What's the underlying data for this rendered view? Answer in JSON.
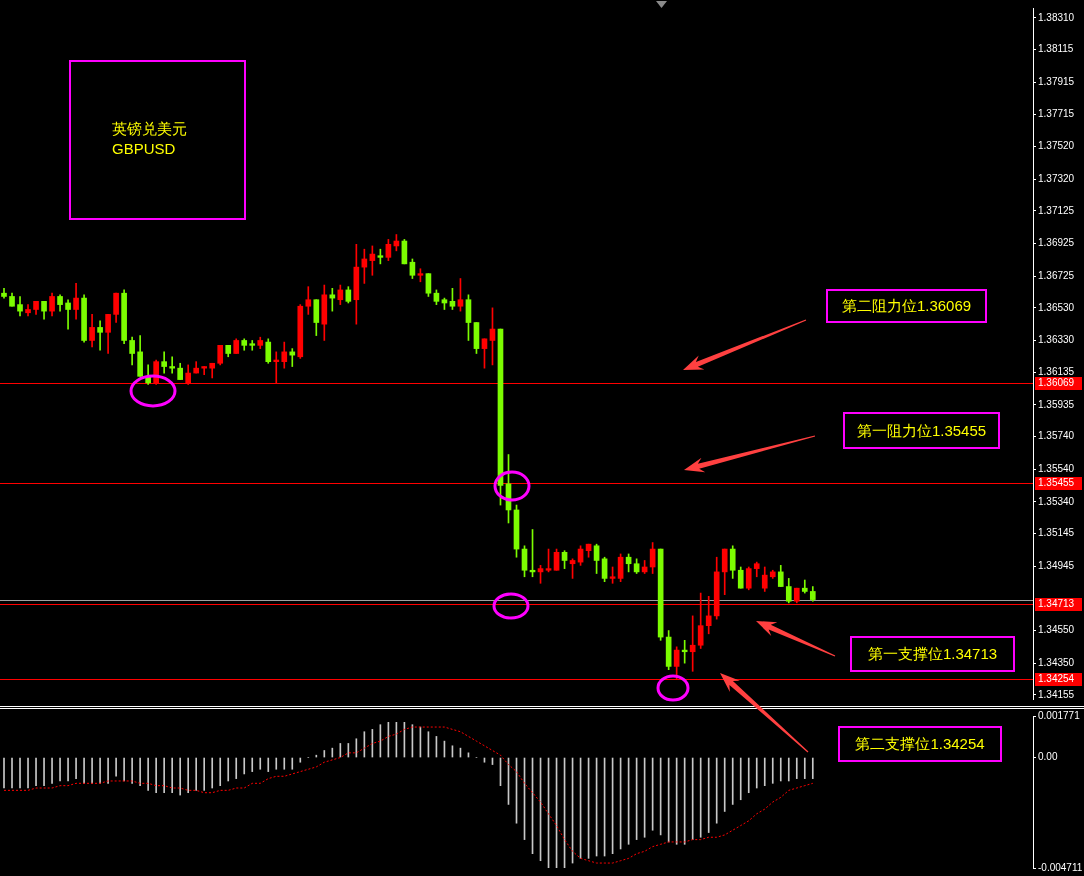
{
  "chart_data": [
    {
      "type": "candlestick",
      "title": "英镑兑美元",
      "subtitle": "GBPUSD",
      "categories": [
        null,
        null,
        null,
        null,
        null,
        null,
        null,
        null,
        null,
        null,
        null,
        null,
        null,
        null,
        null,
        null,
        null,
        null,
        null,
        null,
        null,
        null,
        null,
        null,
        null,
        null,
        null,
        null,
        null,
        null,
        null,
        null,
        null,
        null,
        null,
        null,
        null,
        null,
        null,
        null,
        null,
        null,
        null,
        null,
        null,
        null,
        null,
        null,
        null,
        null,
        null,
        null,
        null,
        null,
        null,
        null,
        null,
        null,
        null,
        null,
        null,
        null,
        null,
        null,
        null,
        null,
        null,
        null,
        null,
        null,
        null,
        null,
        null,
        null,
        null,
        null,
        null,
        null,
        null,
        null,
        null,
        null,
        null,
        null,
        null,
        null,
        null,
        null,
        null,
        null,
        null,
        null,
        null,
        null,
        null,
        null,
        null,
        null,
        null,
        null,
        null,
        null,
        null,
        null,
        null,
        null,
        null,
        null,
        null,
        null,
        null,
        null,
        null,
        null,
        null,
        null,
        null,
        null,
        null,
        null,
        null,
        null,
        null,
        null,
        null,
        null,
        null,
        null,
        null
      ],
      "ohlc": [
        [
          1.3662,
          1.3665,
          1.3659,
          1.366
        ],
        [
          1.366,
          1.3662,
          1.3654,
          1.3654
        ],
        [
          1.3655,
          1.366,
          1.3648,
          1.3651
        ],
        [
          1.365,
          1.3655,
          1.3648,
          1.3652
        ],
        [
          1.3652,
          1.3657,
          1.3649,
          1.3657
        ],
        [
          1.3657,
          1.3657,
          1.3646,
          1.3651
        ],
        [
          1.3651,
          1.3662,
          1.3648,
          1.366
        ],
        [
          1.366,
          1.3661,
          1.3651,
          1.3655
        ],
        [
          1.3656,
          1.3658,
          1.364,
          1.3652
        ],
        [
          1.3652,
          1.3668,
          1.3646,
          1.3659
        ],
        [
          1.3659,
          1.3661,
          1.3632,
          1.3633
        ],
        [
          1.3633,
          1.3649,
          1.3629,
          1.3641
        ],
        [
          1.3641,
          1.3645,
          1.3627,
          1.3638
        ],
        [
          1.3638,
          1.3649,
          1.3625,
          1.3649
        ],
        [
          1.3649,
          1.3662,
          1.3644,
          1.3662
        ],
        [
          1.3662,
          1.3664,
          1.3631,
          1.3633
        ],
        [
          1.3633,
          1.3635,
          1.3618,
          1.3625
        ],
        [
          1.3626,
          1.3636,
          1.3611,
          1.3611
        ],
        [
          1.3611,
          1.3618,
          1.3606,
          1.3607
        ],
        [
          1.3607,
          1.3621,
          1.3606,
          1.362
        ],
        [
          1.362,
          1.3626,
          1.3613,
          1.3617
        ],
        [
          1.3617,
          1.3623,
          1.3613,
          1.3616
        ],
        [
          1.3616,
          1.3619,
          1.3609,
          1.3609
        ],
        [
          1.3607,
          1.3618,
          1.3606,
          1.3613
        ],
        [
          1.3613,
          1.362,
          1.3613,
          1.3616
        ],
        [
          1.3616,
          1.3617,
          1.3612,
          1.3617
        ],
        [
          1.3616,
          1.3619,
          1.361,
          1.3619
        ],
        [
          1.3619,
          1.363,
          1.3618,
          1.363
        ],
        [
          1.363,
          1.363,
          1.3623,
          1.3625
        ],
        [
          1.3625,
          1.3634,
          1.3625,
          1.3633
        ],
        [
          1.3633,
          1.3634,
          1.3627,
          1.363
        ],
        [
          1.3631,
          1.3633,
          1.3627,
          1.363
        ],
        [
          1.363,
          1.3635,
          1.3628,
          1.3633
        ],
        [
          1.3632,
          1.3634,
          1.3619,
          1.362
        ],
        [
          1.362,
          1.3626,
          1.3607,
          1.3621
        ],
        [
          1.362,
          1.3632,
          1.3616,
          1.3626
        ],
        [
          1.3626,
          1.3628,
          1.3617,
          1.3624
        ],
        [
          1.3623,
          1.3655,
          1.3622,
          1.3654
        ],
        [
          1.3654,
          1.3666,
          1.3649,
          1.3658
        ],
        [
          1.3658,
          1.3658,
          1.3636,
          1.3644
        ],
        [
          1.3643,
          1.3667,
          1.3633,
          1.3661
        ],
        [
          1.3661,
          1.3665,
          1.3651,
          1.3659
        ],
        [
          1.3658,
          1.3667,
          1.3655,
          1.3664
        ],
        [
          1.3664,
          1.3666,
          1.3656,
          1.3657
        ],
        [
          1.3658,
          1.3692,
          1.3643,
          1.3678
        ],
        [
          1.3678,
          1.3689,
          1.3668,
          1.3683
        ],
        [
          1.3682,
          1.3691,
          1.3673,
          1.3686
        ],
        [
          1.3685,
          1.3689,
          1.368,
          1.3684
        ],
        [
          1.3684,
          1.3695,
          1.3682,
          1.3692
        ],
        [
          1.3691,
          1.3698,
          1.3688,
          1.3694
        ],
        [
          1.3694,
          1.3695,
          1.368,
          1.368
        ],
        [
          1.3681,
          1.3683,
          1.3671,
          1.3673
        ],
        [
          1.3673,
          1.3677,
          1.3669,
          1.3674
        ],
        [
          1.3674,
          1.3674,
          1.366,
          1.3662
        ],
        [
          1.3662,
          1.3664,
          1.3655,
          1.3657
        ],
        [
          1.3658,
          1.3659,
          1.3652,
          1.3656
        ],
        [
          1.3657,
          1.3665,
          1.3652,
          1.3654
        ],
        [
          1.3654,
          1.3671,
          1.3651,
          1.3658
        ],
        [
          1.3658,
          1.3661,
          1.3633,
          1.3644
        ],
        [
          1.3644,
          1.3644,
          1.3625,
          1.3628
        ],
        [
          1.3628,
          1.3634,
          1.3616,
          1.3634
        ],
        [
          1.3633,
          1.3653,
          1.3618,
          1.364
        ],
        [
          1.364,
          1.364,
          1.3532,
          1.3544
        ],
        [
          1.3545,
          1.3563,
          1.3521,
          1.3529
        ],
        [
          1.3529,
          1.3532,
          1.35,
          1.3505
        ],
        [
          1.3505,
          1.3507,
          1.3488,
          1.3492
        ],
        [
          1.3492,
          1.3517,
          1.3488,
          1.3491
        ],
        [
          1.3491,
          1.3495,
          1.3484,
          1.3493
        ],
        [
          1.3492,
          1.3505,
          1.3491,
          1.3493
        ],
        [
          1.3492,
          1.3505,
          1.3492,
          1.3503
        ],
        [
          1.3503,
          1.3504,
          1.3493,
          1.3498
        ],
        [
          1.3496,
          1.3499,
          1.3487,
          1.3498
        ],
        [
          1.3497,
          1.3507,
          1.3495,
          1.3505
        ],
        [
          1.3504,
          1.3508,
          1.35,
          1.3508
        ],
        [
          1.3507,
          1.3508,
          1.349,
          1.3498
        ],
        [
          1.3499,
          1.35,
          1.3485,
          1.3487
        ],
        [
          1.3487,
          1.3494,
          1.3484,
          1.3488
        ],
        [
          1.3487,
          1.3502,
          1.3485,
          1.35
        ],
        [
          1.35,
          1.3502,
          1.3491,
          1.3496
        ],
        [
          1.3496,
          1.3499,
          1.349,
          1.3491
        ],
        [
          1.3491,
          1.3498,
          1.349,
          1.3494
        ],
        [
          1.3494,
          1.3509,
          1.349,
          1.3505
        ],
        [
          1.3505,
          1.3505,
          1.3449,
          1.3451
        ],
        [
          1.3451,
          1.3455,
          1.3431,
          1.3433
        ],
        [
          1.3433,
          1.3445,
          1.3425,
          1.3443
        ],
        [
          1.3443,
          1.3449,
          1.3435,
          1.3442
        ],
        [
          1.3442,
          1.3464,
          1.343,
          1.3446
        ],
        [
          1.3446,
          1.3478,
          1.3444,
          1.3458
        ],
        [
          1.3458,
          1.3476,
          1.3453,
          1.3464
        ],
        [
          1.3464,
          1.35,
          1.3462,
          1.3491
        ],
        [
          1.3491,
          1.3505,
          1.3477,
          1.3505
        ],
        [
          1.3505,
          1.3507,
          1.3487,
          1.3492
        ],
        [
          1.3492,
          1.3494,
          1.3481,
          1.3481
        ],
        [
          1.3481,
          1.3494,
          1.348,
          1.3493
        ],
        [
          1.3493,
          1.3497,
          1.3488,
          1.3496
        ],
        [
          1.3481,
          1.3494,
          1.3479,
          1.3489
        ],
        [
          1.3488,
          1.3492,
          1.3487,
          1.3491
        ],
        [
          1.3491,
          1.3495,
          1.3482,
          1.3482
        ],
        [
          1.3482,
          1.3487,
          1.3472,
          1.3473
        ],
        [
          1.3473,
          1.3481,
          1.3472,
          1.3481
        ],
        [
          1.3481,
          1.3486,
          1.3478,
          1.3479
        ],
        [
          1.3479,
          1.3482,
          1.3473,
          1.3474
        ],
        null,
        null,
        null,
        null,
        null,
        null,
        null,
        null,
        null,
        null,
        null,
        null,
        null,
        null,
        null,
        null,
        null,
        null,
        null,
        null,
        null,
        null,
        null,
        null,
        null,
        null,
        null
      ],
      "colors": [
        "#7cfc00",
        "#7cfc00",
        "#7cfc00",
        "#ff0000",
        "#ff0000",
        "#7cfc00",
        "#ff0000",
        "#7cfc00",
        "#7cfc00",
        "#ff0000",
        "#7cfc00",
        "#ff0000",
        "#7cfc00",
        "#ff0000",
        "#ff0000",
        "#7cfc00",
        "#7cfc00",
        "#7cfc00",
        "#7cfc00",
        "#ff0000",
        "#7cfc00",
        "#7cfc00",
        "#7cfc00",
        "#ff0000",
        "#ff0000",
        "#ff0000",
        "#ff0000",
        "#ff0000",
        "#7cfc00",
        "#ff0000",
        "#7cfc00",
        "#7cfc00",
        "#ff0000",
        "#7cfc00",
        "#ff0000",
        "#ff0000",
        "#7cfc00",
        "#ff0000",
        "#ff0000",
        "#7cfc00",
        "#ff0000",
        "#7cfc00",
        "#ff0000",
        "#7cfc00",
        "#ff0000",
        "#ff0000",
        "#ff0000",
        "#7cfc00",
        "#ff0000",
        "#ff0000",
        "#7cfc00",
        "#7cfc00",
        "#ff0000",
        "#7cfc00",
        "#7cfc00",
        "#7cfc00",
        "#7cfc00",
        "#ff0000",
        "#7cfc00",
        "#7cfc00",
        "#ff0000",
        "#ff0000",
        "#7cfc00",
        "#7cfc00",
        "#7cfc00",
        "#7cfc00",
        "#7cfc00",
        "#ff0000",
        "#ff0000",
        "#ff0000",
        "#7cfc00",
        "#ff0000",
        "#ff0000",
        "#ff0000",
        "#7cfc00",
        "#7cfc00",
        "#ff0000",
        "#ff0000",
        "#7cfc00",
        "#7cfc00",
        "#ff0000",
        "#ff0000",
        "#7cfc00",
        "#7cfc00",
        "#ff0000",
        "#7cfc00",
        "#ff0000",
        "#ff0000",
        "#ff0000",
        "#ff0000",
        "#ff0000",
        "#7cfc00",
        "#7cfc00",
        "#ff0000",
        "#ff0000",
        "#ff0000",
        "#ff0000",
        "#7cfc00",
        "#7cfc00",
        "#ff0000",
        "#7cfc00",
        "#7cfc00",
        null,
        null,
        null,
        null,
        null,
        null,
        null,
        null,
        null,
        null,
        null,
        null,
        null,
        null,
        null,
        null,
        null,
        null,
        null,
        null,
        null,
        null,
        null,
        null,
        null,
        null,
        null
      ],
      "ylim": [
        1.3413,
        1.3837
      ],
      "yticks": [
        {
          "value": 1.3831,
          "label": "1.38310"
        },
        1.38115,
        1.37915,
        1.37715,
        {
          "value": 1.3752,
          "label": "1.37520"
        },
        {
          "value": 1.3732,
          "label": "1.37320"
        },
        1.37125,
        1.36925,
        1.36725,
        {
          "value": 1.3653,
          "label": "1.36530"
        },
        {
          "value": 1.3633,
          "label": "1.36330"
        },
        1.36135,
        1.35935,
        {
          "value": 1.3574,
          "label": "1.35740"
        },
        {
          "value": 1.3554,
          "label": "1.35540"
        },
        {
          "value": 1.3534,
          "label": "1.35340"
        },
        1.35145,
        1.34945,
        {
          "value": 1.3455,
          "label": "1.34550"
        },
        {
          "value": 1.3435,
          "label": "1.34350"
        },
        1.34155
      ],
      "ref_lines": [
        {
          "axis": "y",
          "value": 1.36069,
          "label": "1.36069",
          "color": "#ff0000"
        },
        {
          "axis": "y",
          "value": 1.35455,
          "label": "1.35455",
          "color": "#ff0000"
        },
        {
          "axis": "y",
          "value": 1.3474,
          "color": "#a0a0a0"
        },
        {
          "axis": "y",
          "value": 1.34713,
          "label": "1.34713",
          "color": "#ff0000"
        },
        {
          "axis": "y",
          "value": 1.34254,
          "label": "1.34254",
          "color": "#ff0000"
        }
      ],
      "annotations": [
        "第二阻力位1.36069",
        "第一阻力位1.35455",
        "第一支撑位1.34713",
        "第二支撑位1.34254"
      ]
    },
    {
      "type": "bar",
      "categories": [
        null,
        null,
        null,
        null,
        null,
        null,
        null,
        null,
        null,
        null,
        null,
        null,
        null,
        null,
        null,
        null,
        null,
        null,
        null,
        null,
        null,
        null,
        null,
        null,
        null,
        null,
        null,
        null,
        null,
        null,
        null,
        null,
        null,
        null,
        null,
        null,
        null,
        null,
        null,
        null,
        null,
        null,
        null,
        null,
        null,
        null,
        null,
        null,
        null,
        null,
        null,
        null,
        null,
        null,
        null,
        null,
        null,
        null,
        null,
        null,
        null,
        null,
        null,
        null,
        null,
        null,
        null,
        null,
        null,
        null,
        null,
        null,
        null,
        null,
        null,
        null,
        null,
        null,
        null,
        null,
        null,
        null,
        null,
        null,
        null,
        null,
        null,
        null,
        null,
        null,
        null,
        null,
        null,
        null,
        null,
        null,
        null,
        null,
        null,
        null,
        null,
        null,
        null,
        null,
        null,
        null,
        null,
        null,
        null,
        null,
        null,
        null,
        null,
        null,
        null,
        null,
        null,
        null,
        null,
        null,
        null,
        null,
        null,
        null,
        null,
        null,
        null,
        null,
        null
      ],
      "series": [
        {
          "color": "#c8c8c8",
          "values": [
            -0.0013,
            -0.0013,
            -0.0013,
            -0.0013,
            -0.0012,
            -0.0012,
            -0.0011,
            -0.001,
            -0.001,
            -0.0009,
            -0.0011,
            -0.0011,
            -0.0011,
            -0.0011,
            -0.0008,
            -0.001,
            -0.0011,
            -0.0012,
            -0.0014,
            -0.0015,
            -0.0015,
            -0.0015,
            -0.0016,
            -0.0015,
            -0.0014,
            -0.0014,
            -0.0013,
            -0.0012,
            -0.001,
            -0.0009,
            -0.0007,
            -0.0006,
            -0.0005,
            -0.0006,
            -0.0005,
            -0.0005,
            -0.0005,
            -0.0002,
            0,
            0.0001,
            0.0003,
            0.0004,
            0.0006,
            0.0006,
            0.0008,
            0.0011,
            0.0012,
            0.0014,
            0.0015,
            0.0015,
            0.0015,
            0.0014,
            0.0013,
            0.0011,
            0.0009,
            0.0007,
            0.0005,
            0.0004,
            0.0002,
            0,
            -0.0002,
            -0.0003,
            -0.0012,
            -0.002,
            -0.0028,
            -0.0035,
            -0.0041,
            -0.0044,
            -0.0047,
            -0.0047,
            -0.0047,
            -0.0045,
            -0.0043,
            -0.0043,
            -0.0042,
            -0.0042,
            -0.0041,
            -0.0039,
            -0.0037,
            -0.0035,
            -0.0034,
            -0.0031,
            -0.0033,
            -0.0036,
            -0.0037,
            -0.0037,
            -0.0035,
            -0.0034,
            -0.0032,
            -0.0028,
            -0.0023,
            -0.002,
            -0.0018,
            -0.0015,
            -0.0013,
            -0.0012,
            -0.0011,
            -0.001,
            -0.001,
            -0.0009,
            -0.0009,
            -0.0009,
            null,
            null,
            null,
            null,
            null,
            null,
            null,
            null,
            null,
            null,
            null,
            null,
            null,
            null,
            null,
            null,
            null,
            null,
            null,
            null,
            null,
            null,
            null,
            null,
            null,
            null,
            null
          ]
        },
        {
          "type": "line",
          "color": "#ff0000",
          "line_style": "dotted",
          "values": [
            -0.0014,
            -0.0014,
            -0.0014,
            -0.0014,
            -0.0013,
            -0.0013,
            -0.0013,
            -0.0012,
            -0.0012,
            -0.0011,
            -0.0011,
            -0.0011,
            -0.0011,
            -0.001,
            -0.001,
            -0.001,
            -0.001,
            -0.0011,
            -0.0011,
            -0.0012,
            -0.0012,
            -0.0013,
            -0.0013,
            -0.0014,
            -0.0014,
            -0.0015,
            -0.0015,
            -0.0014,
            -0.0014,
            -0.0013,
            -0.0013,
            -0.0011,
            -0.0011,
            -0.0009,
            -0.0008,
            -0.0008,
            -0.0007,
            -0.0006,
            -0.0005,
            -0.0004,
            -0.0002,
            -0.0001,
            0,
            0.0002,
            0.0002,
            0.0004,
            0.0006,
            0.0007,
            0.0009,
            0.001,
            0.0012,
            0.0013,
            0.0013,
            0.0013,
            0.0013,
            0.0013,
            0.0012,
            0.0011,
            0.0009,
            0.0007,
            0.0005,
            0.0003,
            0.0001,
            -0.0003,
            -0.0006,
            -0.0011,
            -0.0015,
            -0.0019,
            -0.0024,
            -0.0029,
            -0.0035,
            -0.004,
            -0.0043,
            -0.0044,
            -0.0045,
            -0.0045,
            -0.0045,
            -0.0044,
            -0.0043,
            -0.0041,
            -0.004,
            -0.0038,
            -0.0037,
            -0.0036,
            -0.0036,
            -0.0036,
            -0.0035,
            -0.0035,
            -0.0034,
            -0.0034,
            -0.0033,
            -0.0031,
            -0.0029,
            -0.0027,
            -0.0024,
            -0.0022,
            -0.0019,
            -0.0017,
            -0.0014,
            -0.0013,
            -0.0012,
            -0.0011,
            null,
            null,
            null,
            null,
            null,
            null,
            null,
            null,
            null,
            null,
            null,
            null,
            null,
            null,
            null,
            null,
            null,
            null,
            null,
            null,
            null,
            null,
            null,
            null,
            null,
            null,
            null
          ]
        }
      ],
      "ylim": [
        -0.004711,
        0.001771
      ],
      "yticks": [
        0.001771,
        {
          "value": 0,
          "label": "0.00"
        },
        -0.004711
      ]
    }
  ]
}
